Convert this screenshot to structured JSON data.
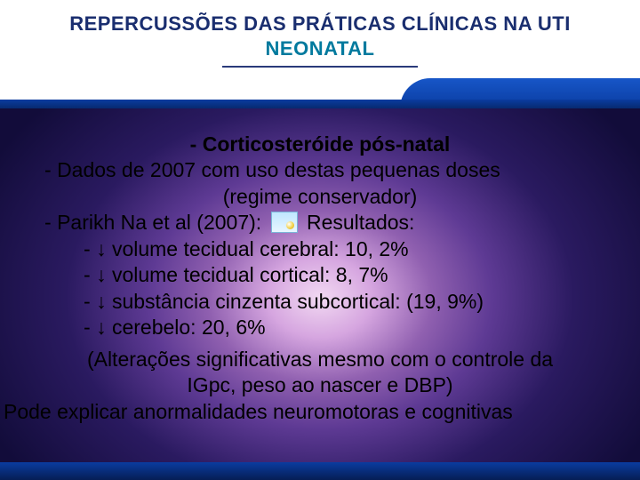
{
  "colors": {
    "title_main": "#1a2e6f",
    "title_accent": "#007a9e",
    "tab_gradient_top": "#1756c8",
    "tab_gradient_bottom": "#0a3ca0",
    "bg_center": "#f2d9f2",
    "bg_outer": "#120c3a",
    "text": "#000000"
  },
  "header": {
    "line1": "REPERCUSSÕES DAS PRÁTICAS CLÍNICAS NA UTI",
    "line2": "NEONATAL"
  },
  "content": {
    "heading": "Corticosteróide pós-natal",
    "line_dados_a": "Dados de 2007 com uso destas pequenas doses",
    "line_dados_b": "(regime conservador)",
    "parikh_before": "Parikh Na et al (2007):",
    "parikh_after": "Resultados:",
    "results": [
      "↓ volume tecidual cerebral: 10, 2%",
      "↓ volume tecidual cortical: 8, 7%",
      "↓ substância cinzenta subcortical: (19, 9%)",
      "↓ cerebelo: 20, 6%"
    ],
    "note_a": "(Alterações significativas mesmo com o controle da",
    "note_b": "IGpc, peso ao nascer e DBP)",
    "note_c": "Pode explicar anormalidades neuromotoras e cognitivas"
  }
}
